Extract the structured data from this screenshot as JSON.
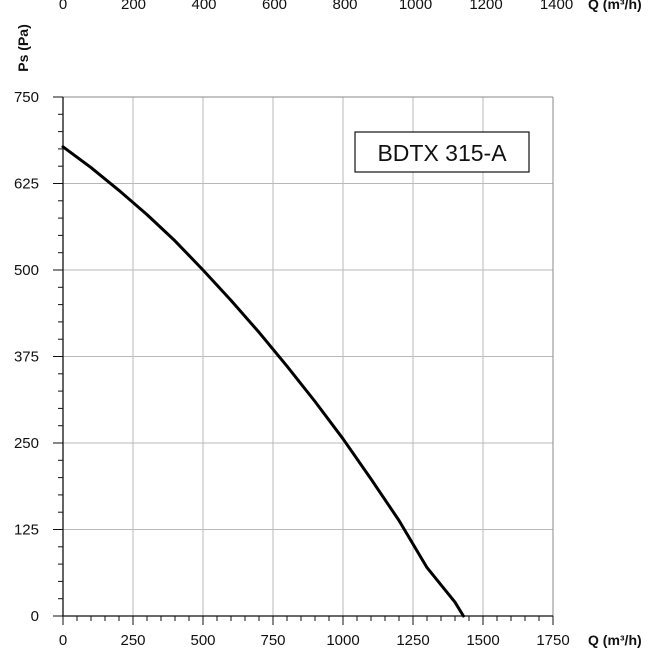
{
  "chart_data": {
    "type": "line",
    "title": "",
    "legend_box": "BDTX 315-A",
    "xlabel": "Q (m³/h)",
    "ylabel": "Ps (Pa)",
    "top_axis": {
      "label": "Q (m³/h)",
      "ticks": [
        0,
        200,
        400,
        600,
        800,
        1000,
        1200,
        1400
      ],
      "tick_labels": [
        "0",
        "200",
        "400",
        "600",
        "800",
        "1000",
        "1200",
        "1400"
      ]
    },
    "xlim": [
      0,
      1750
    ],
    "ylim": [
      0,
      750
    ],
    "x_ticks": [
      0,
      250,
      500,
      750,
      1000,
      1250,
      1500,
      1750
    ],
    "x_tick_labels": [
      "0",
      "250",
      "500",
      "750",
      "1000",
      "1250",
      "1500",
      "1750"
    ],
    "y_ticks": [
      0,
      125,
      250,
      375,
      500,
      625,
      750
    ],
    "y_tick_labels": [
      "0",
      "125",
      "250",
      "375",
      "500",
      "625",
      "750"
    ],
    "grid": true,
    "legend_position": "top-right",
    "line_color": "#000000",
    "series": [
      {
        "x": [
          0,
          100,
          200,
          300,
          400,
          500,
          600,
          700,
          800,
          900,
          1000,
          1100,
          1200,
          1300,
          1400,
          1430
        ],
        "y": [
          678,
          648,
          615,
          580,
          542,
          500,
          456,
          410,
          361,
          310,
          256,
          198,
          138,
          70,
          20,
          0
        ]
      }
    ]
  }
}
